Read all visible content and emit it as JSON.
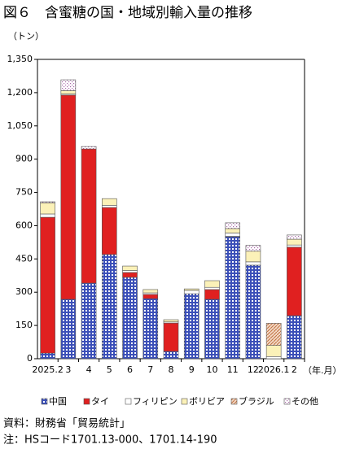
{
  "chart_data": {
    "type": "stacked-bar",
    "title": "図６　含蜜糖の国・地域別輸入量の推移",
    "y_unit": "（トン）",
    "x_unit": "（年.月）",
    "source": "資料：財務省「貿易統計」",
    "note": "注：HSコード1701.13-000、1701.14-190",
    "categories": [
      "2025.2",
      "3",
      "4",
      "5",
      "6",
      "7",
      "8",
      "9",
      "10",
      "11",
      "12",
      "2026.1",
      "2"
    ],
    "series": [
      {
        "name": "中国",
        "color": "#3b4fb8",
        "pattern": "grid",
        "values": [
          25,
          268,
          341,
          470,
          367,
          271,
          33,
          293,
          268,
          550,
          422,
          0,
          194
        ]
      },
      {
        "name": "タイ",
        "color": "#e02020",
        "pattern": "solid",
        "values": [
          613,
          921,
          605,
          212,
          22,
          19,
          128,
          0,
          44,
          2,
          0,
          0,
          309
        ]
      },
      {
        "name": "フィリピン",
        "color": "#ffffff",
        "pattern": "solid",
        "values": [
          15,
          5,
          0,
          10,
          9,
          7,
          5,
          15,
          10,
          15,
          15,
          10,
          10
        ]
      },
      {
        "name": "ボリビア",
        "color": "#fbf1b8",
        "pattern": "solid",
        "values": [
          50,
          15,
          0,
          30,
          20,
          15,
          10,
          7,
          30,
          20,
          48,
          50,
          26
        ]
      },
      {
        "name": "ブラジル",
        "color": "#c0703f",
        "pattern": "hatch",
        "values": [
          0,
          0,
          0,
          0,
          0,
          0,
          0,
          0,
          0,
          0,
          0,
          100,
          0
        ]
      },
      {
        "name": "その他",
        "color": "#a86aa8",
        "pattern": "dots",
        "values": [
          5,
          49,
          11,
          0,
          0,
          0,
          0,
          0,
          0,
          26,
          26,
          0,
          19
        ]
      }
    ],
    "ylim": [
      0,
      1350
    ],
    "yticks": [
      0,
      150,
      300,
      450,
      600,
      750,
      900,
      {
        "value": 1050,
        "label": "1,050"
      },
      {
        "value": 1200,
        "label": "1,200"
      },
      {
        "value": 1350,
        "label": "1,350"
      }
    ]
  }
}
